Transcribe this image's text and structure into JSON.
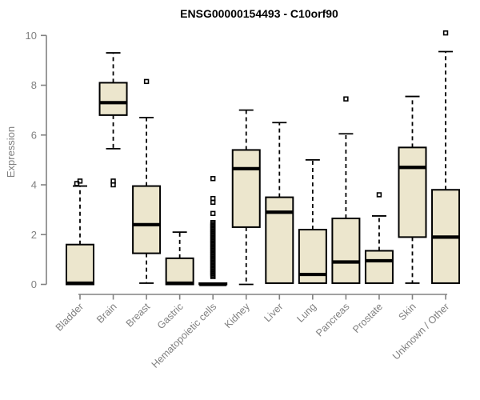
{
  "figure": {
    "title": "ENSG00000154493 - C10orf90"
  },
  "chart_data": {
    "type": "boxplot",
    "title": "ENSG00000154493 - C10orf90",
    "xlabel": "",
    "ylabel": "Expression",
    "ylim": [
      0,
      10
    ],
    "yticks": [
      0,
      2,
      4,
      6,
      8,
      10
    ],
    "grid": false,
    "legend": false,
    "categories": [
      "Bladder",
      "Brain",
      "Breast",
      "Gastric",
      "Hematopoietic cells",
      "Kidney",
      "Liver",
      "Lung",
      "Pancreas",
      "Prostate",
      "Skin",
      "Unknown / Other"
    ],
    "boxes": [
      {
        "category": "Bladder",
        "lower_whisker": 0,
        "q1": 0,
        "median": 0.05,
        "q3": 1.6,
        "upper_whisker": 3.95,
        "outliers": [
          4.05,
          4.15
        ]
      },
      {
        "category": "Brain",
        "lower_whisker": 5.45,
        "q1": 6.8,
        "median": 7.3,
        "q3": 8.1,
        "upper_whisker": 9.3,
        "outliers": [
          4.0,
          4.15
        ]
      },
      {
        "category": "Breast",
        "lower_whisker": 0.05,
        "q1": 1.25,
        "median": 2.4,
        "q3": 3.95,
        "upper_whisker": 6.7,
        "outliers": [
          8.15
        ]
      },
      {
        "category": "Gastric",
        "lower_whisker": 0,
        "q1": 0,
        "median": 0.05,
        "q3": 1.05,
        "upper_whisker": 2.1,
        "outliers": []
      },
      {
        "category": "Hematopoietic cells",
        "lower_whisker": 0,
        "q1": 0,
        "median": 0,
        "q3": 0.05,
        "upper_whisker": 0.05,
        "outliers": [
          2.85,
          3.3,
          3.45,
          4.25
        ],
        "outlier_stack": {
          "from": 0.32,
          "to": 2.48,
          "count": 40
        }
      },
      {
        "category": "Kidney",
        "lower_whisker": 0,
        "q1": 2.3,
        "median": 4.65,
        "q3": 5.4,
        "upper_whisker": 7.0,
        "outliers": []
      },
      {
        "category": "Liver",
        "lower_whisker": 0.05,
        "q1": 0.05,
        "median": 2.9,
        "q3": 3.5,
        "upper_whisker": 6.5,
        "outliers": []
      },
      {
        "category": "Lung",
        "lower_whisker": 0.05,
        "q1": 0.05,
        "median": 0.4,
        "q3": 2.2,
        "upper_whisker": 5.0,
        "outliers": []
      },
      {
        "category": "Pancreas",
        "lower_whisker": 0.05,
        "q1": 0.05,
        "median": 0.9,
        "q3": 2.65,
        "upper_whisker": 6.05,
        "outliers": [
          7.45
        ]
      },
      {
        "category": "Prostate",
        "lower_whisker": 0.05,
        "q1": 0.05,
        "median": 0.95,
        "q3": 1.35,
        "upper_whisker": 2.75,
        "outliers": [
          3.6
        ]
      },
      {
        "category": "Skin",
        "lower_whisker": 0.05,
        "q1": 1.9,
        "median": 4.7,
        "q3": 5.5,
        "upper_whisker": 7.55,
        "outliers": []
      },
      {
        "category": "Unknown / Other",
        "lower_whisker": 0.05,
        "q1": 0.05,
        "median": 1.9,
        "q3": 3.8,
        "upper_whisker": 9.35,
        "outliers": [
          10.1
        ]
      }
    ],
    "colors": {
      "box_fill": "#ECE6CD",
      "box_stroke": "#000000",
      "median_stroke": "#000000",
      "whisker_stroke": "#000000",
      "outlier_stroke": "#000000",
      "axis": "#828282",
      "tick_label": "#808080",
      "title": "#000000",
      "background": "#FFFFFF"
    }
  }
}
